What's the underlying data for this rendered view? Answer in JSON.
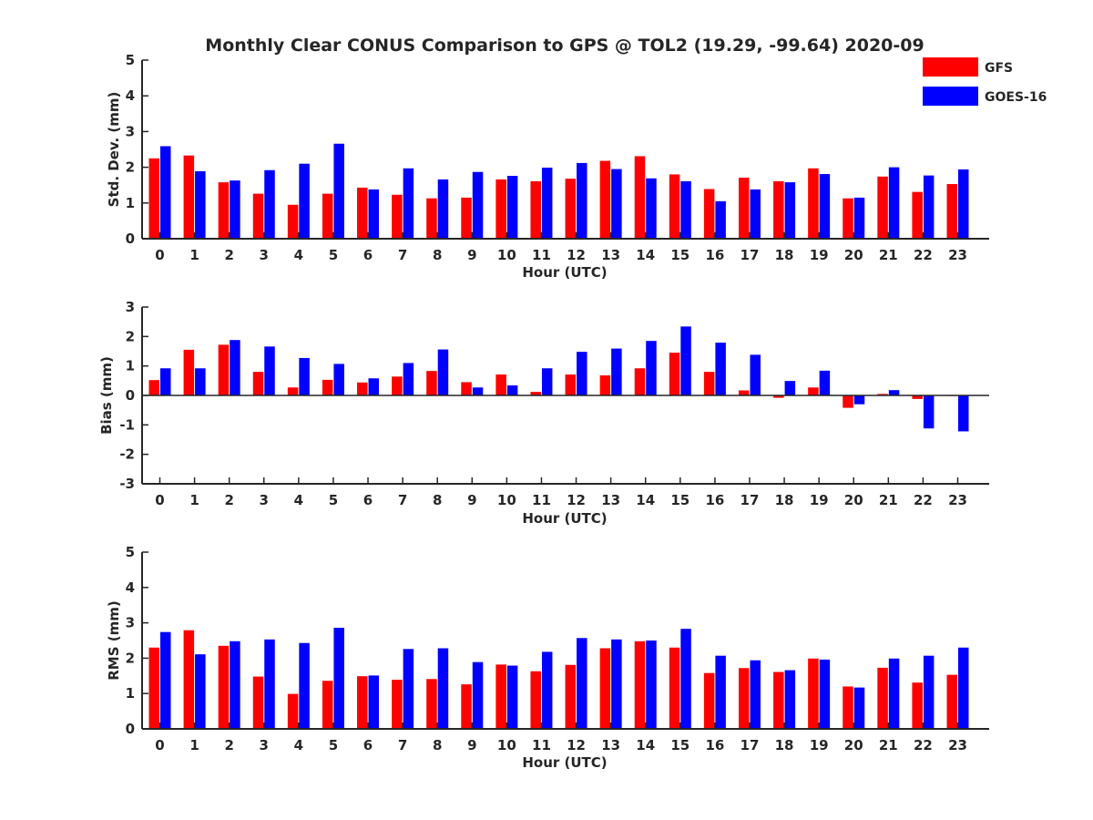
{
  "chart_data": {
    "title": "Monthly Clear CONUS Comparison to GPS @ TOL2 (19.29, -99.64) 2020-09",
    "legend": {
      "placement": "top-right",
      "entries": [
        {
          "name": "GFS",
          "color": "#ff0000"
        },
        {
          "name": "GOES-16",
          "color": "#0000ff"
        }
      ]
    },
    "panels": [
      {
        "type": "bar",
        "ylabel": "Std. Dev. (mm)",
        "xlabel": "Hour (UTC)",
        "ylim": [
          0,
          5
        ],
        "yticks": [
          "0",
          "1",
          "2",
          "3",
          "4",
          "5"
        ],
        "categories": [
          "0",
          "1",
          "2",
          "3",
          "4",
          "5",
          "6",
          "7",
          "8",
          "9",
          "10",
          "11",
          "12",
          "13",
          "14",
          "15",
          "16",
          "17",
          "18",
          "19",
          "20",
          "21",
          "22",
          "23"
        ],
        "series": [
          {
            "name": "GFS",
            "values": [
              2.25,
              2.33,
              1.58,
              1.26,
              0.95,
              1.26,
              1.43,
              1.23,
              1.13,
              1.15,
              1.66,
              1.61,
              1.68,
              2.18,
              2.31,
              1.8,
              1.39,
              1.71,
              1.61,
              1.97,
              1.13,
              1.74,
              1.31,
              1.53
            ]
          },
          {
            "name": "GOES-16",
            "values": [
              2.59,
              1.89,
              1.63,
              1.92,
              2.1,
              2.66,
              1.38,
              1.97,
              1.66,
              1.87,
              1.76,
              1.99,
              2.12,
              1.95,
              1.69,
              1.61,
              1.05,
              1.38,
              1.58,
              1.81,
              1.15,
              2.0,
              1.77,
              1.94
            ]
          }
        ]
      },
      {
        "type": "bar",
        "ylabel": "Bias (mm)",
        "xlabel": "Hour (UTC)",
        "ylim": [
          -3,
          3
        ],
        "yticks": [
          "-3",
          "-2",
          "-1",
          "0",
          "1",
          "2",
          "3"
        ],
        "categories": [
          "0",
          "1",
          "2",
          "3",
          "4",
          "5",
          "6",
          "7",
          "8",
          "9",
          "10",
          "11",
          "12",
          "13",
          "14",
          "15",
          "16",
          "17",
          "18",
          "19",
          "20",
          "21",
          "22",
          "23"
        ],
        "series": [
          {
            "name": "GFS",
            "values": [
              0.52,
              1.55,
              1.72,
              0.8,
              0.27,
              0.53,
              0.44,
              0.64,
              0.83,
              0.45,
              0.71,
              0.12,
              0.71,
              0.68,
              0.92,
              1.45,
              0.8,
              0.17,
              -0.08,
              0.27,
              -0.42,
              0.05,
              -0.12,
              -0.02
            ]
          },
          {
            "name": "GOES-16",
            "values": [
              0.92,
              0.92,
              1.88,
              1.66,
              1.27,
              1.07,
              0.58,
              1.1,
              1.56,
              0.27,
              0.34,
              0.92,
              1.48,
              1.59,
              1.85,
              2.34,
              1.79,
              1.38,
              0.49,
              0.84,
              -0.3,
              0.18,
              -1.12,
              -1.22
            ]
          }
        ]
      },
      {
        "type": "bar",
        "ylabel": "RMS (mm)",
        "xlabel": "Hour (UTC)",
        "ylim": [
          0,
          5
        ],
        "yticks": [
          "0",
          "1",
          "2",
          "3",
          "4",
          "5"
        ],
        "categories": [
          "0",
          "1",
          "2",
          "3",
          "4",
          "5",
          "6",
          "7",
          "8",
          "9",
          "10",
          "11",
          "12",
          "13",
          "14",
          "15",
          "16",
          "17",
          "18",
          "19",
          "20",
          "21",
          "22",
          "23"
        ],
        "series": [
          {
            "name": "GFS",
            "values": [
              2.3,
              2.79,
              2.35,
              1.48,
              0.99,
              1.36,
              1.49,
              1.39,
              1.41,
              1.26,
              1.82,
              1.63,
              1.81,
              2.28,
              2.48,
              2.3,
              1.58,
              1.72,
              1.61,
              1.99,
              1.2,
              1.73,
              1.31,
              1.53
            ]
          },
          {
            "name": "GOES-16",
            "values": [
              2.74,
              2.11,
              2.48,
              2.53,
              2.43,
              2.86,
              1.51,
              2.26,
              2.28,
              1.89,
              1.79,
              2.18,
              2.57,
              2.53,
              2.5,
              2.83,
              2.07,
              1.94,
              1.66,
              1.96,
              1.17,
              1.99,
              2.07,
              2.3
            ]
          }
        ]
      }
    ]
  }
}
